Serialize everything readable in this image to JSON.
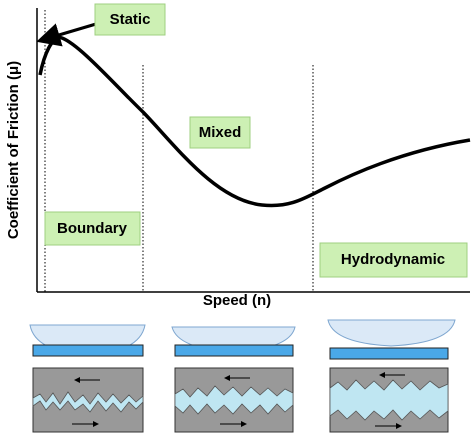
{
  "diagram": {
    "y_axis_label": "Coefficient of Friction (μ)",
    "x_axis_label": "Speed (n)",
    "regions": {
      "static": "Static",
      "mixed": "Mixed",
      "boundary": "Boundary",
      "hydrodynamic": "Hydrodynamic"
    }
  }
}
